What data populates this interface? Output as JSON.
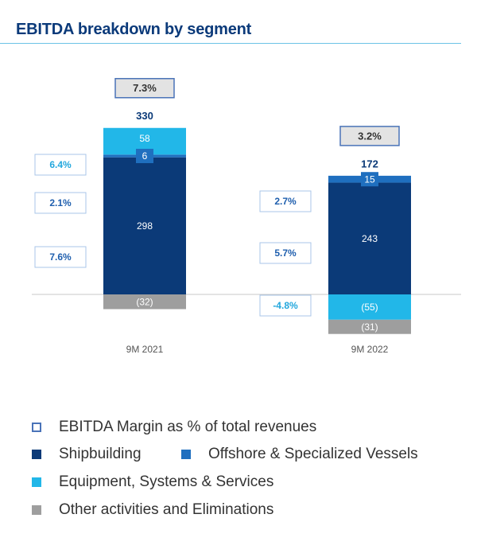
{
  "header": {
    "title": "EBITDA breakdown by segment"
  },
  "colors": {
    "shipbuilding": "#0b3a78",
    "offshore": "#1f6fbf",
    "equipment": "#22b7e8",
    "other": "#9e9e9e",
    "margin_box": "#4a73b8",
    "margin_text_top": "#333333",
    "margin_text_seg": "#1f5fae",
    "margin_text_equip": "#22a7dd"
  },
  "chart_data": {
    "type": "bar",
    "stacked": true,
    "title": "EBITDA breakdown by segment",
    "categories": [
      "9M 2021",
      "9M 2022"
    ],
    "totals": [
      330,
      172
    ],
    "totals_labels": [
      "330",
      "172"
    ],
    "total_margin_labels": [
      "7.3%",
      "3.2%"
    ],
    "series": [
      {
        "key": "shipbuilding",
        "name": "Shipbuilding",
        "values": [
          298,
          243
        ],
        "labels": [
          "298",
          "243"
        ],
        "margin_labels": [
          "7.6%",
          "5.7%"
        ]
      },
      {
        "key": "offshore",
        "name": "Offshore & Specialized Vessels",
        "values": [
          6,
          15
        ],
        "labels": [
          "6",
          "15"
        ],
        "margin_labels": [
          "2.1%",
          "2.7%"
        ]
      },
      {
        "key": "equipment",
        "name": "Equipment, Systems & Services",
        "values": [
          58,
          -55
        ],
        "labels": [
          "58",
          "(55)"
        ],
        "margin_labels": [
          "6.4%",
          "-4.8%"
        ]
      },
      {
        "key": "other",
        "name": "Other activities and Eliminations",
        "values": [
          -32,
          -31
        ],
        "labels": [
          "(32)",
          "(31)"
        ]
      }
    ],
    "ylim": [
      -95,
      520
    ],
    "grid": false,
    "legend_position": "bottom"
  },
  "legend": [
    {
      "key": "margin",
      "label": "EBITDA Margin as % of total revenues"
    },
    {
      "key": "shipbuilding",
      "label": "Shipbuilding"
    },
    {
      "key": "offshore",
      "label": "Offshore & Specialized Vessels"
    },
    {
      "key": "equipment",
      "label": "Equipment, Systems & Services"
    },
    {
      "key": "other",
      "label": "Other activities and Eliminations"
    }
  ]
}
